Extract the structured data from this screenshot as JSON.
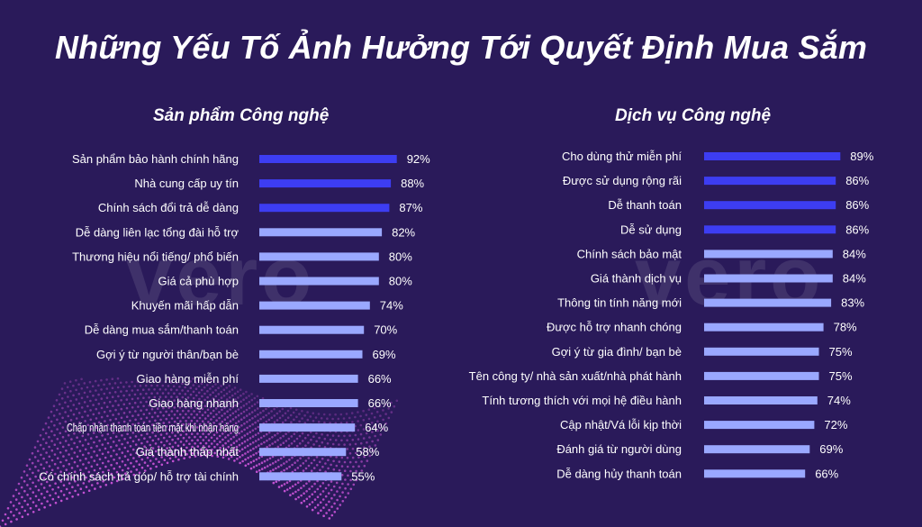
{
  "title": "Những Yếu Tố Ảnh Hưởng Tới Quyết Định Mua Sắm",
  "watermark": "vero",
  "colors": {
    "background": "#2a1a5a",
    "bar_strong": "#3d3df2",
    "bar_light": "#9aa8ff",
    "text": "#ffffff"
  },
  "chart_data": [
    {
      "type": "bar",
      "orientation": "horizontal",
      "title": "Sản phẩm Công nghệ",
      "categories": [
        "Sản phẩm bảo hành chính hãng",
        "Nhà cung cấp uy tín",
        "Chính sách đổi trả dễ dàng",
        "Dễ dàng liên lạc tổng đài hỗ trợ",
        "Thương hiệu nổi tiếng/ phổ biến",
        "Giá cả phù hợp",
        "Khuyến mãi hấp dẫn",
        "Dễ dàng mua sắm/thanh toán",
        "Gợi ý từ người thân/bạn bè",
        "Giao hàng miễn phí",
        "Giao hàng nhanh",
        "Chấp nhận thanh toán tiền mặt khi nhận hàng",
        "Giá thành thấp nhất",
        "Có chính sách trả góp/ hỗ trợ tài chính"
      ],
      "values": [
        92,
        88,
        87,
        82,
        80,
        80,
        74,
        70,
        69,
        66,
        66,
        64,
        58,
        55
      ],
      "value_labels": [
        "92%",
        "88%",
        "87%",
        "82%",
        "80%",
        "80%",
        "74%",
        "70%",
        "69%",
        "66%",
        "66%",
        "64%",
        "58%",
        "55%"
      ],
      "highlight_top": 3,
      "xlim": [
        0,
        100
      ],
      "unit": "%"
    },
    {
      "type": "bar",
      "orientation": "horizontal",
      "title": "Dịch vụ Công nghệ",
      "categories": [
        "Cho dùng thử miễn phí",
        "Được sử dụng rộng rãi",
        "Dễ thanh toán",
        "Dễ sử dụng",
        "Chính sách bảo mật",
        "Giá thành dịch vụ",
        "Thông tin tính năng mới",
        "Được hỗ trợ nhanh chóng",
        "Gợi ý từ gia đình/ bạn bè",
        "Tên công ty/ nhà sản xuất/nhà phát hành",
        "Tính tương thích với mọi hệ điều hành",
        "Cập nhật/Vá lỗi kịp thời",
        "Đánh giá từ người dùng",
        "Dễ dàng hủy thanh toán"
      ],
      "values": [
        89,
        86,
        86,
        86,
        84,
        84,
        83,
        78,
        75,
        75,
        74,
        72,
        69,
        66
      ],
      "value_labels": [
        "89%",
        "86%",
        "86%",
        "86%",
        "84%",
        "84%",
        "83%",
        "78%",
        "75%",
        "75%",
        "74%",
        "72%",
        "69%",
        "66%"
      ],
      "highlight_top": 4,
      "xlim": [
        0,
        100
      ],
      "unit": "%"
    }
  ]
}
